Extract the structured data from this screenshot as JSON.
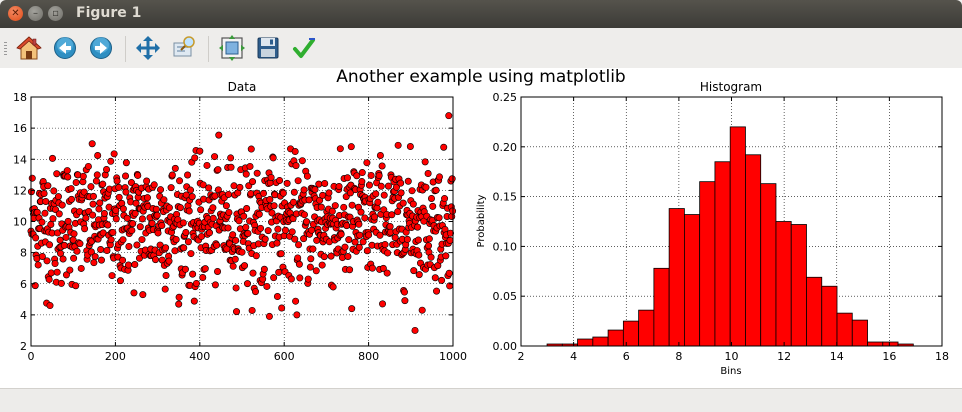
{
  "window": {
    "title": "Figure 1"
  },
  "toolbar": {
    "items": [
      {
        "name": "home-icon"
      },
      {
        "name": "back-icon"
      },
      {
        "name": "forward-icon"
      },
      {
        "name": "pan-icon"
      },
      {
        "name": "zoom-icon"
      },
      {
        "name": "subplots-icon"
      },
      {
        "name": "save-icon"
      },
      {
        "name": "edit-icon"
      }
    ]
  },
  "figure": {
    "suptitle": "Another example using matplotlib"
  },
  "chart_data": [
    {
      "type": "scatter",
      "title": "Data",
      "xlabel": "",
      "ylabel": "",
      "xlim": [
        0,
        1000
      ],
      "ylim": [
        2,
        18
      ],
      "xticks": [
        "0",
        "200",
        "400",
        "600",
        "800",
        "1000"
      ],
      "yticks": [
        "2",
        "4",
        "6",
        "8",
        "10",
        "12",
        "14",
        "16",
        "18"
      ],
      "grid": true,
      "marker_color": "#ff0000",
      "n_points": 1000,
      "mean": 10,
      "std": 2,
      "notable_points": [
        [
          45,
          4.6
        ],
        [
          60,
          6.1
        ],
        [
          265,
          5.3
        ],
        [
          565,
          3.9
        ],
        [
          630,
          4.0
        ],
        [
          760,
          4.4
        ],
        [
          910,
          3.0
        ],
        [
          990,
          16.8
        ]
      ]
    },
    {
      "type": "bar",
      "title": "Histogram",
      "xlabel": "Bins",
      "ylabel": "Probability",
      "xlim": [
        2,
        18
      ],
      "ylim": [
        0,
        0.25
      ],
      "xticks": [
        "2",
        "4",
        "6",
        "8",
        "10",
        "12",
        "14",
        "16",
        "18"
      ],
      "yticks": [
        "0.00",
        "0.05",
        "0.10",
        "0.15",
        "0.20",
        "0.25"
      ],
      "grid": true,
      "bar_color": "#ff0000",
      "bin_width": 0.58,
      "bin_starts": [
        2.99,
        3.57,
        4.15,
        4.73,
        5.31,
        5.89,
        6.47,
        7.05,
        7.63,
        8.21,
        8.79,
        9.37,
        9.95,
        10.53,
        11.11,
        11.69,
        12.27,
        12.85,
        13.43,
        14.01,
        14.59,
        15.17,
        15.75,
        16.33
      ],
      "values": [
        0.002,
        0.002,
        0.007,
        0.009,
        0.016,
        0.025,
        0.036,
        0.078,
        0.138,
        0.132,
        0.165,
        0.185,
        0.22,
        0.192,
        0.163,
        0.125,
        0.122,
        0.069,
        0.06,
        0.033,
        0.026,
        0.004,
        0.004,
        0.002
      ]
    }
  ]
}
